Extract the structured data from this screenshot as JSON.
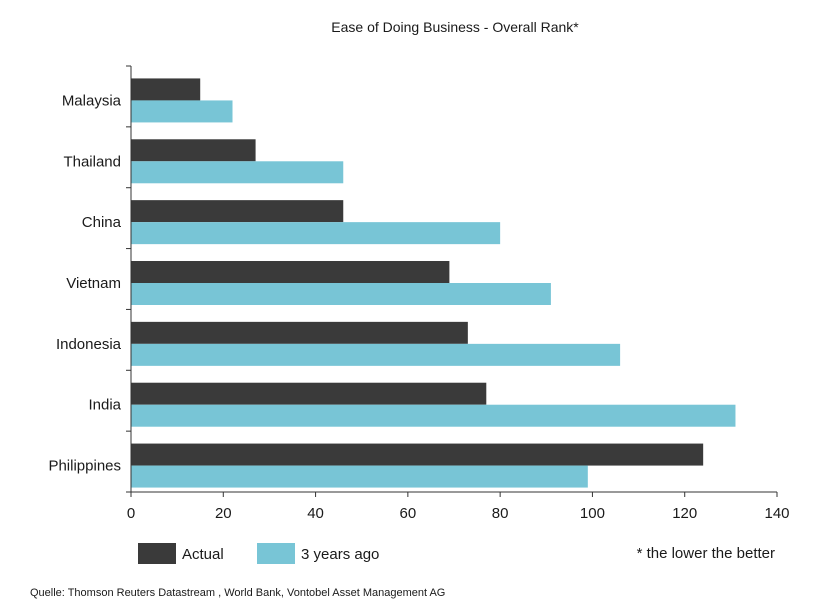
{
  "chart_data": {
    "type": "bar",
    "orientation": "horizontal",
    "title": "Ease of Doing Business - Overall Rank*",
    "categories": [
      "Malaysia",
      "Thailand",
      "China",
      "Vietnam",
      "Indonesia",
      "India",
      "Philippines"
    ],
    "series": [
      {
        "name": "Actual",
        "color": "#3a3a3a",
        "values": [
          15,
          27,
          46,
          69,
          73,
          77,
          124
        ]
      },
      {
        "name": "3 years ago",
        "color": "#78c5d6",
        "values": [
          22,
          46,
          80,
          91,
          106,
          131,
          99
        ]
      }
    ],
    "xlim": [
      0,
      140
    ],
    "xticks": [
      "0",
      "20",
      "40",
      "60",
      "80",
      "100",
      "120",
      "140"
    ],
    "grid": false,
    "legend_position": "bottom-left",
    "note": "* the lower the better"
  },
  "source": "Quelle: Thomson Reuters Datastream , World Bank, Vontobel Asset Management AG"
}
